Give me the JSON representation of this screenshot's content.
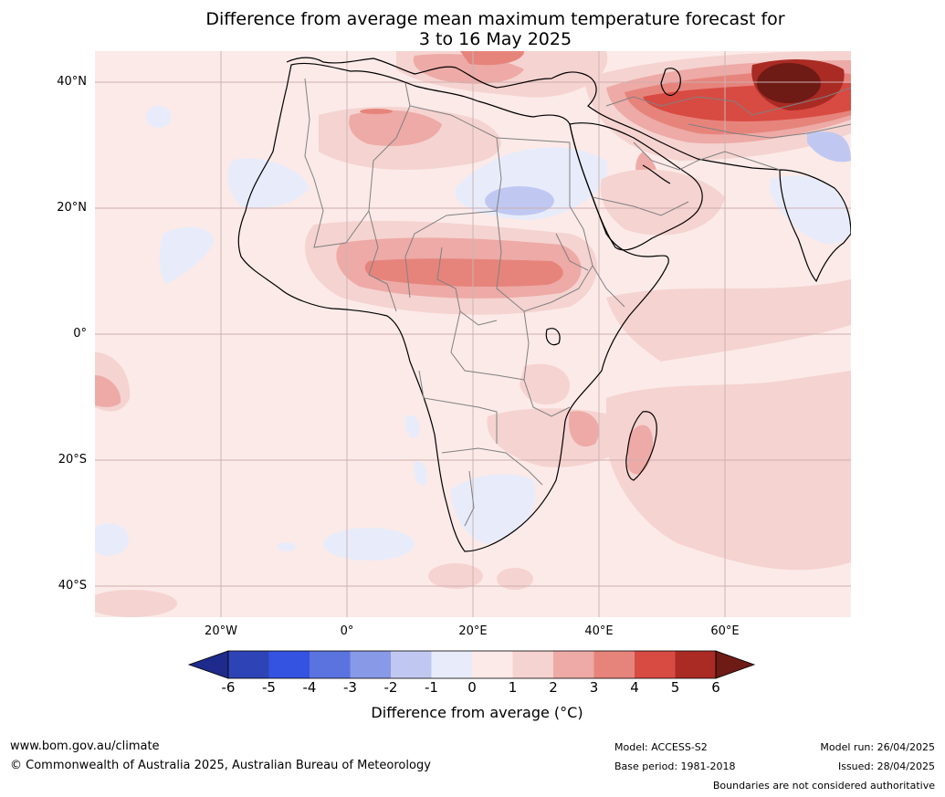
{
  "title": {
    "line1": "Difference from average mean maximum temperature forecast for",
    "line2": "3 to 16 May 2025"
  },
  "map": {
    "lat_labels": [
      "40°N",
      "20°N",
      "0°",
      "20°S",
      "40°S"
    ],
    "lon_labels": [
      "20°W",
      "0°",
      "20°E",
      "40°E",
      "60°E"
    ]
  },
  "colorbar": {
    "ticks": [
      "-6",
      "-5",
      "-4",
      "-3",
      "-2",
      "-1",
      "0",
      "1",
      "2",
      "3",
      "4",
      "5",
      "6"
    ],
    "title": "Difference from average (°C)",
    "colors": [
      "#1e2b8c",
      "#2e44b6",
      "#3453e0",
      "#5a73df",
      "#8899e8",
      "#c0c8f2",
      "#e8ecfa",
      "#fbeae8",
      "#f5d3d0",
      "#edaaa6",
      "#e6847c",
      "#d84b42",
      "#a92b24",
      "#6e1a15"
    ]
  },
  "footer": {
    "website": "www.bom.gov.au/climate",
    "copyright": "© Commonwealth of Australia 2025, Australian Bureau of Meteorology",
    "model": "Model: ACCESS-S2",
    "base_period": "Base period: 1981-2018",
    "model_run": "Model run: 26/04/2025",
    "issued": "Issued: 28/04/2025",
    "disclaimer": "Boundaries are not considered authoritative"
  }
}
